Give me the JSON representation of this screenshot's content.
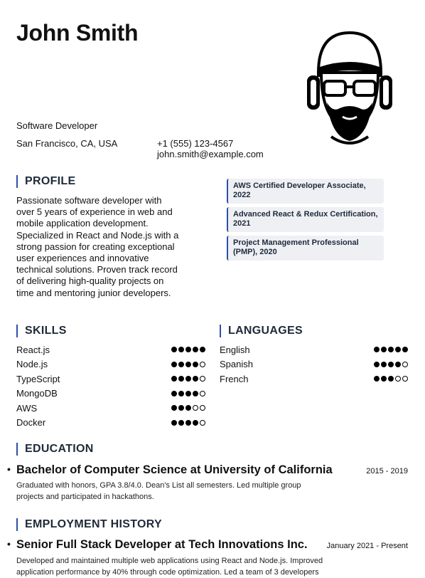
{
  "header": {
    "name": "John Smith",
    "job_title": "Software Developer",
    "location": "San Francisco, CA, USA",
    "phone": "+1 (555) 123-4567",
    "email": "john.smith@example.com"
  },
  "profile": {
    "heading": "PROFILE",
    "text": "Passionate software developer with over 5 years of experience in web and mobile application development. Specialized in React and Node.js with a strong passion for creating exceptional user experiences and innovative technical solutions. Proven track record of delivering high-quality projects on time and mentoring junior developers."
  },
  "certifications": [
    "AWS Certified Developer Associate, 2022",
    "Advanced React & Redux Certification, 2021",
    "Project Management Professional (PMP), 2020"
  ],
  "skills": {
    "heading": "SKILLS",
    "items": [
      {
        "name": "React.js",
        "level": 5,
        "max": 5
      },
      {
        "name": "Node.js",
        "level": 4,
        "max": 5
      },
      {
        "name": "TypeScript",
        "level": 4,
        "max": 5
      },
      {
        "name": "MongoDB",
        "level": 4,
        "max": 5
      },
      {
        "name": "AWS",
        "level": 3,
        "max": 5
      },
      {
        "name": "Docker",
        "level": 4,
        "max": 5
      }
    ]
  },
  "languages": {
    "heading": "LANGUAGES",
    "items": [
      {
        "name": "English",
        "level": 5,
        "max": 5
      },
      {
        "name": "Spanish",
        "level": 4,
        "max": 5
      },
      {
        "name": "French",
        "level": 3,
        "max": 5
      }
    ]
  },
  "education": {
    "heading": "EDUCATION",
    "entry": {
      "title": "Bachelor of Computer Science at University of California",
      "dates": "2015 - 2019",
      "description": "Graduated with honors, GPA 3.8/4.0. Dean's List all semesters. Led multiple group projects and participated in hackathons."
    }
  },
  "employment": {
    "heading": "EMPLOYMENT HISTORY",
    "entry": {
      "title": "Senior Full Stack Developer at Tech Innovations Inc.",
      "dates": "January 2021 - Present",
      "description": "Developed and maintained multiple web applications using React and Node.js. Improved application performance by 40% through code optimization. Led a team of 3 developers"
    }
  },
  "icons": {
    "avatar": "avatar-illustration-icon"
  },
  "colors": {
    "accent": "#2b4fa8",
    "cert_background": "#eef0f4"
  }
}
